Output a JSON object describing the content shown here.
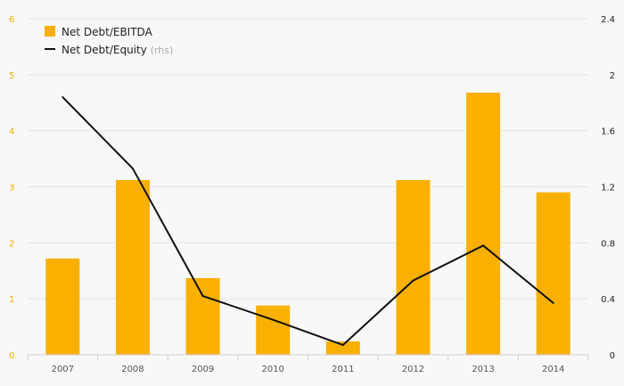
{
  "colors": {
    "bar": "#f9b000",
    "line": "#111111",
    "grid": "#e4e4e4",
    "left_axis_text": "#f4ad00",
    "right_axis_text": "#222222"
  },
  "chart_data": {
    "type": "bar",
    "categories": [
      "2007",
      "2008",
      "2009",
      "2010",
      "2011",
      "2012",
      "2013",
      "2014"
    ],
    "series": [
      {
        "name": "Net Debt/EBITDA",
        "type": "bar",
        "axis": "left",
        "values": [
          1.72,
          3.12,
          1.37,
          0.88,
          0.24,
          3.12,
          4.68,
          2.9
        ]
      },
      {
        "name": "Net Debt/Equity",
        "type": "line",
        "axis": "right",
        "values": [
          1.84,
          1.33,
          0.42,
          0.25,
          0.07,
          0.53,
          0.78,
          0.37
        ]
      }
    ],
    "y_left": {
      "lim": [
        0,
        6
      ],
      "ticks": [
        "0",
        "1",
        "2",
        "3",
        "4",
        "5",
        "6"
      ]
    },
    "y_right": {
      "lim": [
        0,
        2.4
      ],
      "ticks": [
        "0",
        "0.4",
        "0.8",
        "1.2",
        "1.6",
        "2",
        "2.4"
      ]
    },
    "legend": {
      "placement": "top-left",
      "entries": [
        {
          "label": "Net Debt/EBITDA",
          "note": ""
        },
        {
          "label": "Net Debt/Equity",
          "note": "(rhs)"
        }
      ]
    },
    "grid": true
  }
}
